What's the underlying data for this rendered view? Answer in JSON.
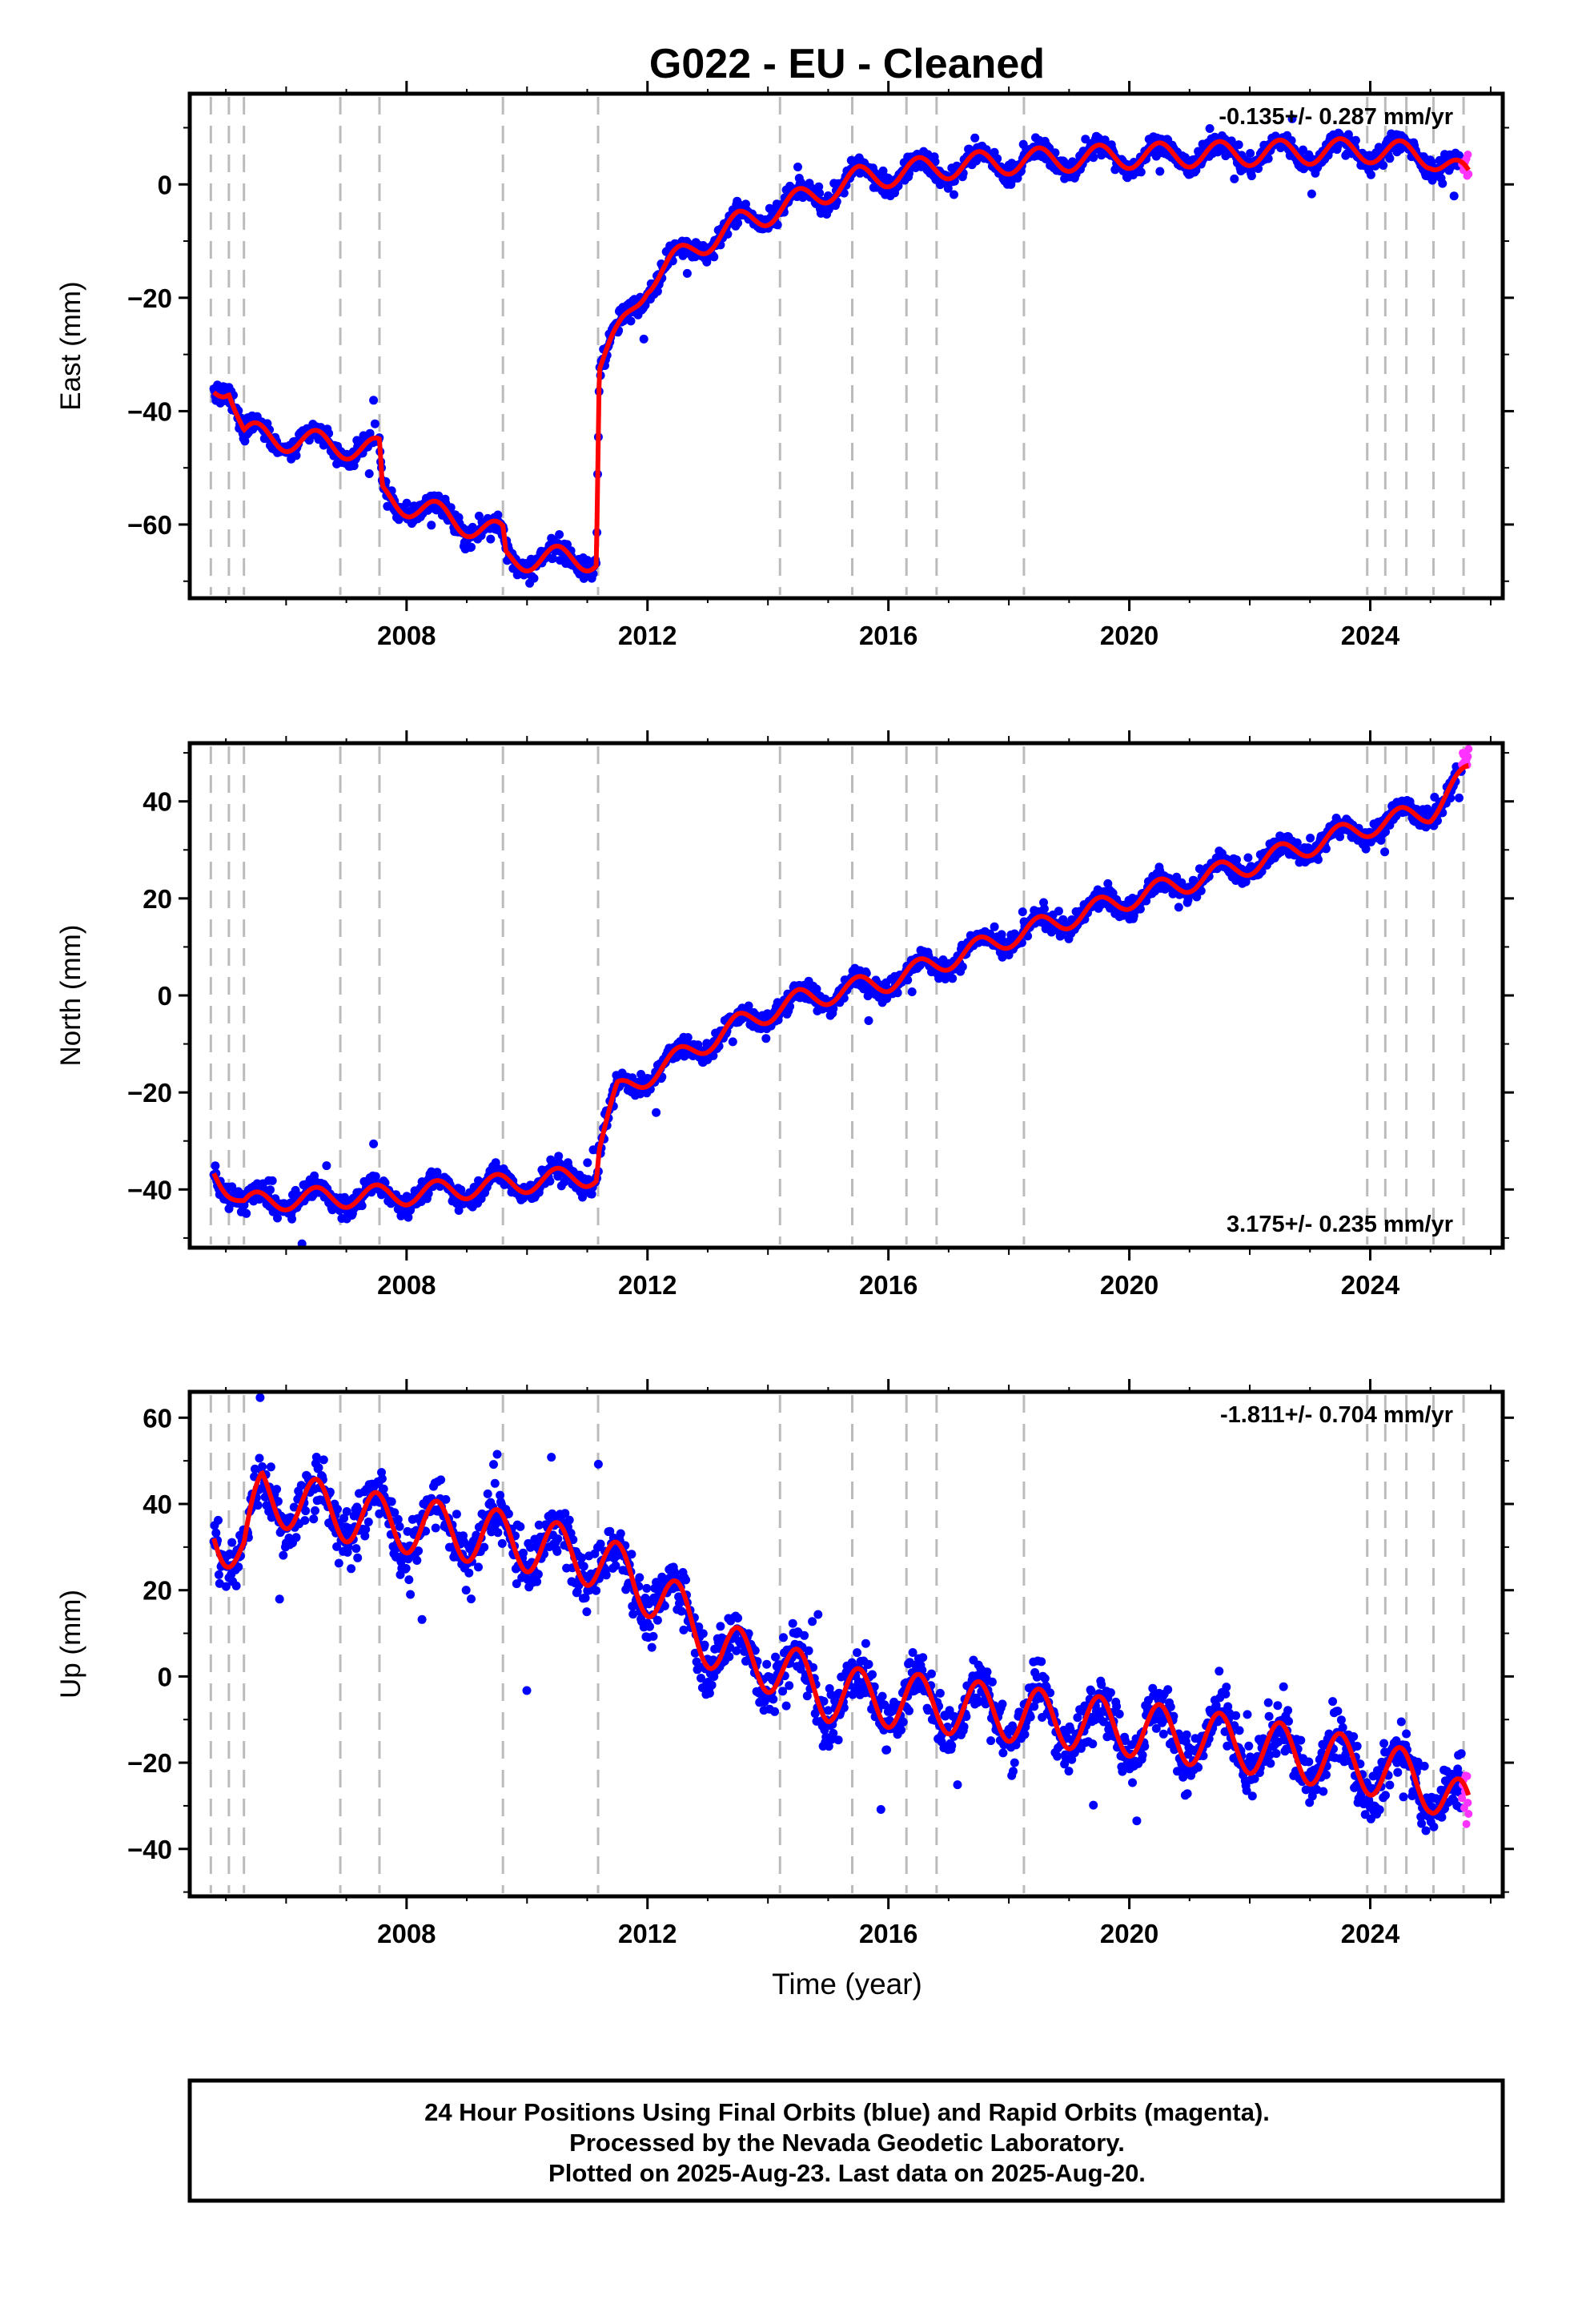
{
  "chart_data": {
    "type": "scatter",
    "title": "G022  - EU - Cleaned",
    "xlabel": "Time (year)",
    "xlim": [
      2004.4,
      2026.2
    ],
    "xticks": [
      2008,
      2012,
      2016,
      2020,
      2024
    ],
    "xminor": [
      2006,
      2010,
      2014,
      2018,
      2022,
      2026
    ],
    "step_epochs": [
      2004.75,
      2005.05,
      2005.3,
      2006.9,
      2007.55,
      2009.6,
      2011.18,
      2014.2,
      2015.4,
      2016.3,
      2016.8,
      2018.25,
      2023.95,
      2024.25,
      2024.6,
      2025.05,
      2025.55
    ],
    "data_start": 2004.8,
    "data_end": 2025.64,
    "rapid_start": 2025.52,
    "colors": {
      "final": "#0000ff",
      "rapid": "#ff33ff",
      "model": "#ff0000",
      "steps": "#bbbbbb"
    },
    "panels": [
      {
        "name": "East",
        "ylabel": "East (mm)",
        "ylim": [
          -73,
          16
        ],
        "yticks": [
          -60,
          -40,
          -20,
          0
        ],
        "rate_label": "-0.135+/- 0.287 mm/yr",
        "rate_position": "top-right",
        "trend": [
          [
            2004.8,
            -36
          ],
          [
            2005.05,
            -35
          ],
          [
            2005.3,
            -44
          ],
          [
            2007.55,
            -47
          ],
          [
            2007.6,
            -55
          ],
          [
            2009.6,
            -62
          ],
          [
            2009.65,
            -66
          ],
          [
            2011.15,
            -66
          ],
          [
            2011.2,
            -32
          ],
          [
            2011.5,
            -27
          ],
          [
            2012,
            -17
          ],
          [
            2012.8,
            -11
          ],
          [
            2013.5,
            -7
          ],
          [
            2014.5,
            -3
          ],
          [
            2015.5,
            1
          ],
          [
            2016.8,
            3
          ],
          [
            2018,
            4
          ],
          [
            2020,
            5
          ],
          [
            2022,
            5.5
          ],
          [
            2024,
            6
          ],
          [
            2025,
            5
          ],
          [
            2025.64,
            1
          ]
        ],
        "seasonal_amp": 2.2,
        "noise": 1.6,
        "rapid_offset": 0
      },
      {
        "name": "North",
        "ylabel": "North (mm)",
        "ylim": [
          -52,
          52
        ],
        "yticks": [
          -40,
          -20,
          0,
          20,
          40
        ],
        "rate_label": "3.175+/- 0.235 mm/yr",
        "rate_position": "bottom-right",
        "trend": [
          [
            2004.8,
            -36
          ],
          [
            2005.3,
            -43
          ],
          [
            2006,
            -42
          ],
          [
            2008,
            -41
          ],
          [
            2011.15,
            -37
          ],
          [
            2011.2,
            -31
          ],
          [
            2011.5,
            -20
          ],
          [
            2012.5,
            -13
          ],
          [
            2013.5,
            -6
          ],
          [
            2014.5,
            -1
          ],
          [
            2016,
            3
          ],
          [
            2018,
            12
          ],
          [
            2020,
            20
          ],
          [
            2022,
            27
          ],
          [
            2024,
            35
          ],
          [
            2025,
            38
          ],
          [
            2025.64,
            46
          ]
        ],
        "seasonal_amp": 2.2,
        "noise": 1.9,
        "rapid_offset": 4
      },
      {
        "name": "Up",
        "ylabel": "Up (mm)",
        "ylim": [
          -51,
          66
        ],
        "yticks": [
          -40,
          -20,
          0,
          20,
          40,
          60
        ],
        "rate_label": "-1.811+/- 0.704 mm/yr",
        "rate_position": "top-right",
        "trend": [
          [
            2004.8,
            34
          ],
          [
            2005.3,
            29
          ],
          [
            2005.6,
            42
          ],
          [
            2007.55,
            36
          ],
          [
            2009.6,
            32
          ],
          [
            2011.2,
            27
          ],
          [
            2012.3,
            18
          ],
          [
            2013.2,
            6
          ],
          [
            2014.2,
            2
          ],
          [
            2015,
            -4
          ],
          [
            2016.5,
            -6
          ],
          [
            2018.25,
            -9
          ],
          [
            2020,
            -12
          ],
          [
            2022,
            -16
          ],
          [
            2024,
            -21
          ],
          [
            2025,
            -25
          ],
          [
            2025.64,
            -32
          ]
        ],
        "seasonal_amp": 6.5,
        "noise": 5.5,
        "rapid_offset": 0
      }
    ],
    "footer": [
      "24 Hour Positions Using Final Orbits (blue) and Rapid Orbits (magenta).",
      "Processed by the Nevada Geodetic Laboratory.",
      "Plotted on 2025-Aug-23. Last data on 2025-Aug-20."
    ]
  }
}
